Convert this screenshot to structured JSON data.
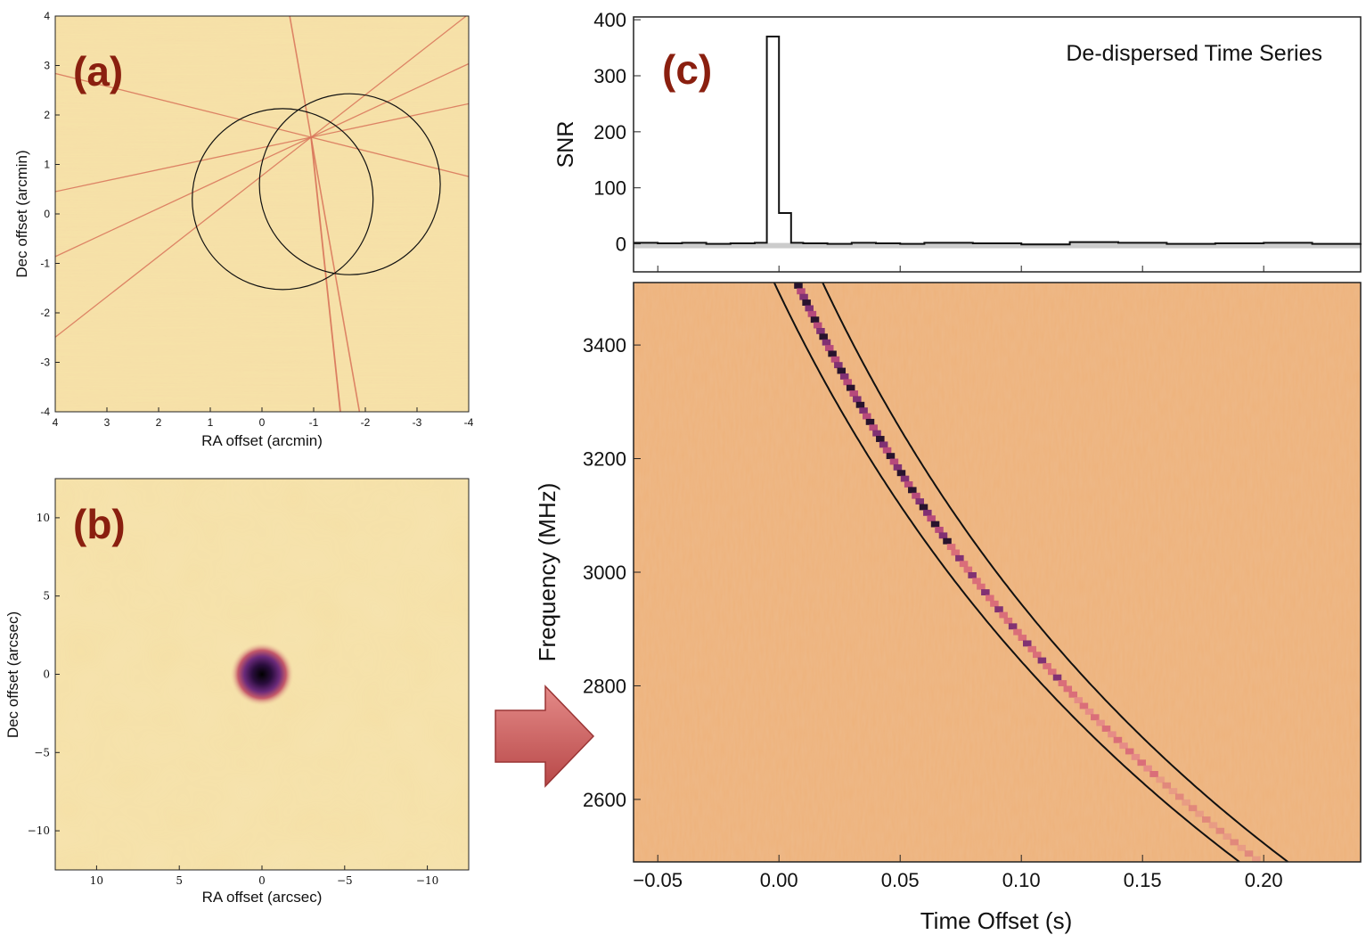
{
  "colors": {
    "panel_bg": "#f7e3a9",
    "streak": "#d9745a",
    "waterfall_bg": "#eeb37c",
    "pulse_dark": "#1c0b28",
    "pulse_mid": "#7a2a72",
    "pulse_light": "#d86a78",
    "arrow_fill": "#c95a5a",
    "label_color": "#8a1f0f",
    "snr_fill": "#cccccc"
  },
  "chart_data": [
    {
      "id": "a",
      "type": "heatmap",
      "label": "(a)",
      "xlabel": "RA offset (arcmin)",
      "ylabel": "Dec offset (arcmin)",
      "xlim": [
        4,
        -4
      ],
      "ylim": [
        -4,
        4
      ],
      "xticks": [
        "4",
        "3",
        "2",
        "1",
        "0",
        "-1",
        "-2",
        "-3",
        "-4"
      ],
      "yticks": [
        "4",
        "3",
        "2",
        "1",
        "0",
        "-1",
        "-2",
        "-3",
        "-4"
      ],
      "circles": [
        {
          "cx": -0.4,
          "cy": 0.3,
          "r": 1.75
        },
        {
          "cx": -1.7,
          "cy": 0.6,
          "r": 1.75
        }
      ],
      "source": {
        "x": -0.95,
        "y": 1.55
      }
    },
    {
      "id": "b",
      "type": "heatmap",
      "label": "(b)",
      "xlabel": "RA offset (arcsec)",
      "ylabel": "Dec offset (arcsec)",
      "xlim": [
        12.5,
        -12.5
      ],
      "ylim": [
        -12.5,
        12.5
      ],
      "xticks": [
        "10",
        "5",
        "0",
        "−5",
        "−10"
      ],
      "xtick_values": [
        10,
        5,
        0,
        -5,
        -10
      ],
      "yticks": [
        "10",
        "5",
        "0",
        "−5",
        "−10"
      ],
      "ytick_values": [
        10,
        5,
        0,
        -5,
        -10
      ],
      "source": {
        "x": 0,
        "y": 0
      }
    },
    {
      "id": "c-top",
      "type": "line",
      "label": "(c)",
      "title": "De-dispersed Time Series",
      "ylabel": "SNR",
      "xlim": [
        -0.06,
        0.24
      ],
      "ylim": [
        -50,
        405
      ],
      "yticks": [
        "0",
        "100",
        "200",
        "300",
        "400"
      ],
      "ytick_values": [
        0,
        100,
        200,
        300,
        400
      ],
      "series": [
        {
          "x": [
            -0.06,
            -0.05,
            -0.04,
            -0.03,
            -0.02,
            -0.01,
            -0.005,
            0.0,
            0.005,
            0.01,
            0.02,
            0.03,
            0.04,
            0.05,
            0.06,
            0.08,
            0.1,
            0.12,
            0.14,
            0.16,
            0.18,
            0.2,
            0.22,
            0.24
          ],
          "y": [
            2,
            1,
            2,
            0,
            1,
            2,
            370,
            55,
            2,
            1,
            0,
            2,
            1,
            0,
            2,
            1,
            -1,
            3,
            2,
            0,
            1,
            2,
            0,
            1
          ]
        }
      ]
    },
    {
      "id": "c-bottom",
      "type": "heatmap",
      "xlabel": "Time Offset (s)",
      "ylabel": "Frequency (MHz)",
      "xlim": [
        -0.06,
        0.24
      ],
      "ylim": [
        2490,
        3510
      ],
      "xticks": [
        "−0.05",
        "0.00",
        "0.05",
        "0.10",
        "0.15",
        "0.20"
      ],
      "xtick_values": [
        -0.05,
        0.0,
        0.05,
        0.1,
        0.15,
        0.2
      ],
      "yticks": [
        "3400",
        "3200",
        "3000",
        "2800",
        "2600"
      ],
      "ytick_values": [
        3400,
        3200,
        3000,
        2800,
        2600
      ],
      "sweep": {
        "freq_ref": 3510,
        "t_ref": -0.002,
        "t_end": 0.19,
        "freq_end": 2490,
        "band_width": 0.02
      }
    }
  ]
}
